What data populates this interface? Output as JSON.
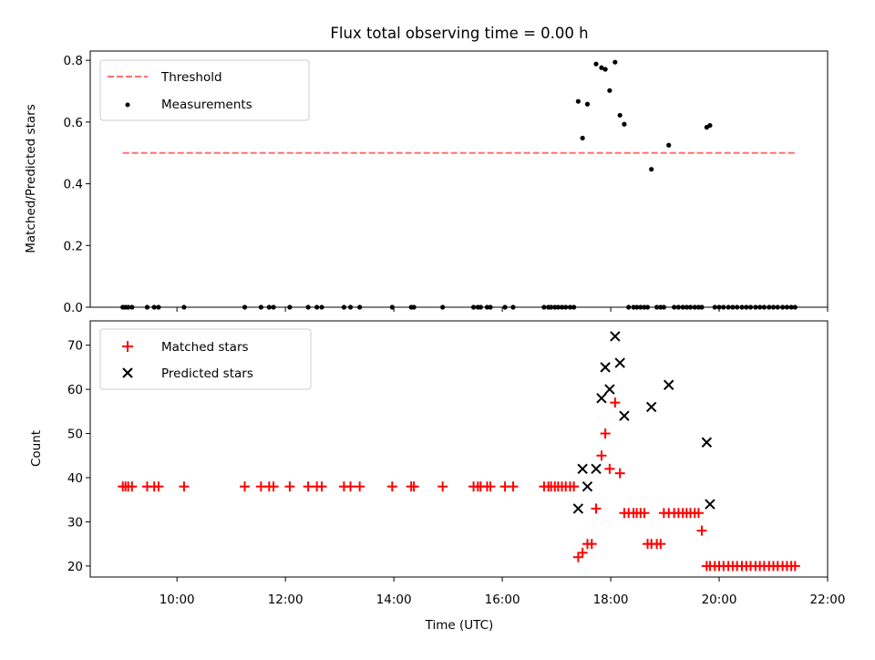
{
  "chart_data": [
    {
      "type": "scatter",
      "title": "Flux total observing time = 0.00 h",
      "xlabel": "",
      "ylabel": "Matched/Predicted stars",
      "xlim": [
        8.4,
        22.0
      ],
      "ylim": [
        0.0,
        0.83
      ],
      "yticks": [
        0.0,
        0.2,
        0.4,
        0.6,
        0.8
      ],
      "ytick_labels": [
        "0.0",
        "0.2",
        "0.4",
        "0.6",
        "0.8"
      ],
      "legend_position": "top-left",
      "threshold": {
        "name": "Threshold",
        "value": 0.5,
        "x_range": [
          9.0,
          21.4
        ],
        "color": "#ff7070",
        "style": "dashed"
      },
      "series": [
        {
          "name": "Measurements",
          "marker": "dot",
          "color": "#000000",
          "x": [
            9.0,
            9.05,
            9.1,
            9.17,
            9.45,
            9.58,
            9.66,
            10.13,
            11.25,
            11.55,
            11.7,
            11.78,
            12.08,
            12.42,
            12.58,
            12.67,
            13.08,
            13.2,
            13.37,
            13.97,
            14.32,
            14.37,
            14.9,
            15.47,
            15.55,
            15.6,
            15.72,
            15.78,
            16.05,
            16.2,
            16.77,
            16.85,
            16.9,
            16.97,
            17.03,
            17.1,
            17.17,
            17.25,
            17.32,
            17.4,
            17.48,
            17.57,
            17.73,
            17.83,
            17.9,
            17.98,
            18.08,
            18.17,
            18.25,
            18.33,
            18.42,
            18.48,
            18.55,
            18.62,
            18.68,
            18.75,
            18.85,
            18.92,
            18.98,
            19.07,
            19.17,
            19.25,
            19.33,
            19.4,
            19.47,
            19.55,
            19.62,
            19.68,
            19.77,
            19.83,
            19.92,
            20.0,
            20.08,
            20.17,
            20.25,
            20.33,
            20.42,
            20.5,
            20.58,
            20.67,
            20.75,
            20.83,
            20.92,
            21.0,
            21.08,
            21.17,
            21.25,
            21.33,
            21.4
          ],
          "y": [
            0,
            0,
            0,
            0,
            0,
            0,
            0,
            0,
            0,
            0,
            0,
            0,
            0,
            0,
            0,
            0,
            0,
            0,
            0,
            0,
            0,
            0,
            0,
            0,
            0,
            0,
            0,
            0,
            0,
            0,
            0,
            0,
            0,
            0,
            0,
            0,
            0,
            0,
            0,
            0.667,
            0.548,
            0.658,
            0.788,
            0.776,
            0.771,
            0.702,
            0.794,
            0.622,
            0.593,
            0,
            0,
            0,
            0,
            0,
            0,
            0.447,
            0,
            0,
            0,
            0.525,
            0,
            0,
            0,
            0,
            0,
            0,
            0,
            0,
            0.583,
            0.589,
            0,
            0,
            0,
            0,
            0,
            0,
            0,
            0,
            0,
            0,
            0,
            0,
            0,
            0,
            0,
            0,
            0,
            0,
            0
          ]
        }
      ]
    },
    {
      "type": "scatter",
      "title": "",
      "xlabel": "Time (UTC)",
      "ylabel": "Count",
      "xlim": [
        8.4,
        22.0
      ],
      "ylim": [
        17.5,
        75.5
      ],
      "xticks": [
        10,
        12,
        14,
        16,
        18,
        20,
        22
      ],
      "xtick_labels": [
        "10:00",
        "12:00",
        "14:00",
        "16:00",
        "18:00",
        "20:00",
        "22:00"
      ],
      "yticks": [
        20,
        30,
        40,
        50,
        60,
        70
      ],
      "ytick_labels": [
        "20",
        "30",
        "40",
        "50",
        "60",
        "70"
      ],
      "legend_position": "top-left",
      "series": [
        {
          "name": "Matched stars",
          "marker": "plus",
          "color": "#ff0000",
          "x": [
            9.0,
            9.05,
            9.1,
            9.17,
            9.45,
            9.58,
            9.66,
            10.13,
            11.25,
            11.55,
            11.7,
            11.78,
            12.08,
            12.42,
            12.58,
            12.67,
            13.08,
            13.2,
            13.37,
            13.97,
            14.32,
            14.37,
            14.9,
            15.47,
            15.55,
            15.6,
            15.72,
            15.78,
            16.05,
            16.2,
            16.77,
            16.85,
            16.9,
            16.97,
            17.03,
            17.1,
            17.17,
            17.25,
            17.32,
            17.4,
            17.48,
            17.57,
            17.65,
            17.73,
            17.83,
            17.9,
            17.98,
            18.08,
            18.17,
            18.25,
            18.33,
            18.42,
            18.48,
            18.55,
            18.62,
            18.68,
            18.75,
            18.85,
            18.92,
            18.98,
            19.07,
            19.17,
            19.25,
            19.33,
            19.4,
            19.47,
            19.55,
            19.62,
            19.68,
            19.77,
            19.83,
            19.92,
            20.0,
            20.08,
            20.17,
            20.25,
            20.33,
            20.42,
            20.5,
            20.58,
            20.67,
            20.75,
            20.83,
            20.92,
            21.0,
            21.08,
            21.17,
            21.25,
            21.33,
            21.4
          ],
          "y": [
            38,
            38,
            38,
            38,
            38,
            38,
            38,
            38,
            38,
            38,
            38,
            38,
            38,
            38,
            38,
            38,
            38,
            38,
            38,
            38,
            38,
            38,
            38,
            38,
            38,
            38,
            38,
            38,
            38,
            38,
            38,
            38,
            38,
            38,
            38,
            38,
            38,
            38,
            38,
            22,
            23,
            25,
            25,
            33,
            45,
            50,
            42,
            57,
            41,
            32,
            32,
            32,
            32,
            32,
            32,
            25,
            25,
            25,
            25,
            32,
            32,
            32,
            32,
            32,
            32,
            32,
            32,
            32,
            28,
            20,
            20,
            20,
            20,
            20,
            20,
            20,
            20,
            20,
            20,
            20,
            20,
            20,
            20,
            20,
            20,
            20,
            20,
            20,
            20,
            20
          ]
        },
        {
          "name": "Predicted stars",
          "marker": "x",
          "color": "#000000",
          "x": [
            17.4,
            17.48,
            17.57,
            17.73,
            17.83,
            17.9,
            17.98,
            18.08,
            18.17,
            18.25,
            18.75,
            19.07,
            19.77,
            19.83
          ],
          "y": [
            33,
            42,
            38,
            42,
            58,
            65,
            60,
            72,
            66,
            54,
            56,
            61,
            48,
            34
          ]
        }
      ]
    }
  ]
}
